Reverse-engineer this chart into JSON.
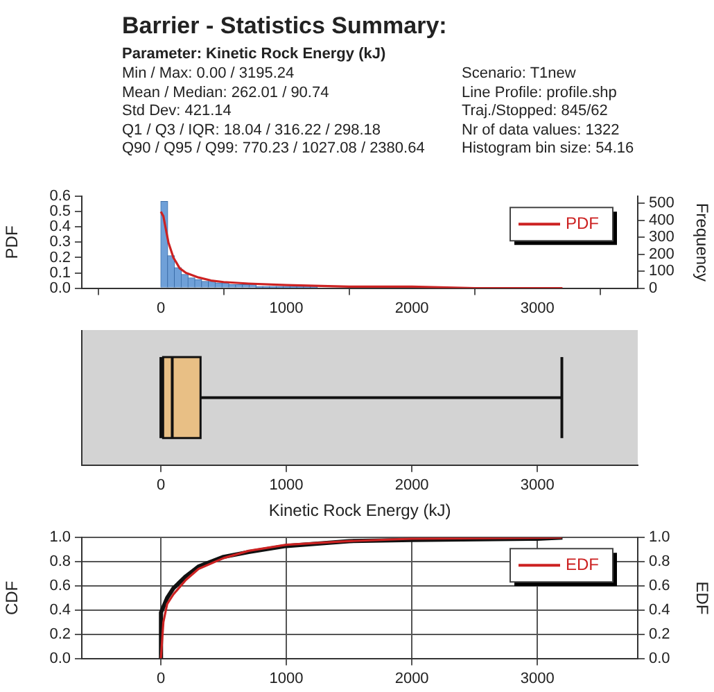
{
  "chart_data": [
    {
      "type": "histogram",
      "title": "Barrier - Statistics Summary:",
      "subtitle": "Parameter: Kinetic Rock Energy (kJ)",
      "annotations": [
        "Min / Max: 0.00 / 3195.24",
        "Scenario: T1new",
        "Mean / Median: 262.01 / 90.74",
        "Line Profile: profile.shp",
        "Std Dev: 421.14",
        "Traj./Stopped: 845/62",
        "Q1 / Q3 / IQR: 18.04 / 316.22 / 298.18",
        "Nr of data values: 1322",
        "Q90 / Q95 / Q99: 770.23 / 1027.08 / 2380.64",
        "Histogram bin size: 54.16"
      ],
      "ylabel": "PDF",
      "y2label": "Frequency",
      "bins": [
        0,
        54.16,
        108.32,
        162.48,
        216.64,
        270.8,
        324.96,
        379.12,
        433.28,
        487.44,
        541.6,
        595.76,
        649.92,
        704.08,
        758.24,
        812.4,
        866.56,
        920.72,
        974.88,
        1029.04,
        1083.2,
        1137.36,
        1191.52,
        1245.68,
        1299.84,
        1354,
        1408.16,
        1462.32,
        1516.48,
        1570.64,
        1624.8
      ],
      "series": [
        {
          "type": "histogram",
          "axis": "y2",
          "color": "#6fa0d8",
          "values": [
            510,
            190,
            120,
            80,
            60,
            50,
            40,
            40,
            30,
            30,
            20,
            20,
            20,
            20,
            10,
            10,
            10,
            10,
            10,
            10,
            10,
            10,
            10,
            0,
            0,
            0,
            0,
            0,
            0,
            0
          ]
        },
        {
          "type": "line",
          "name": "PDF",
          "color": "#cc2222",
          "x": [
            0,
            20,
            60,
            100,
            150,
            200,
            300,
            400,
            500,
            700,
            1000,
            1500,
            2000,
            2500,
            3000,
            3200
          ],
          "values": [
            0.5,
            0.47,
            0.3,
            0.2,
            0.13,
            0.1,
            0.07,
            0.05,
            0.04,
            0.03,
            0.02,
            0.01,
            0.01,
            0,
            0,
            0
          ]
        }
      ],
      "xlim": [
        -630,
        3800
      ],
      "xticks": [
        0,
        1000,
        2000,
        3000
      ],
      "ylim": [
        0,
        0.6
      ],
      "yticks": [
        {
          "value": 0,
          "label": "0.0"
        },
        0.1,
        0.2,
        0.3,
        0.4,
        0.5,
        0.6
      ],
      "y2lim": [
        0,
        540
      ],
      "y2ticks": [
        0,
        100,
        200,
        300,
        400,
        500
      ],
      "legend": "top right"
    },
    {
      "type": "box",
      "orientation": "horizontal",
      "categories": [
        null
      ],
      "xlabel": "Kinetic Rock Energy (kJ)",
      "series": [
        {
          "color": "#e8bf85",
          "boxes": [
            {
              "low": 0,
              "q1": 18.04,
              "median": 90.74,
              "q3": 316.22,
              "high": 3195.24
            }
          ]
        }
      ],
      "xlim": [
        -630,
        3800
      ],
      "xticks": [
        0,
        1000,
        2000,
        3000
      ]
    },
    {
      "type": "line",
      "ylabel": "CDF",
      "y2label": "EDF",
      "series": [
        {
          "color": "#111111",
          "x": [
            0,
            1,
            50,
            100,
            200,
            300,
            500,
            700,
            1000,
            1500,
            2000,
            3000,
            3200
          ],
          "values": [
            0,
            0.38,
            0.5,
            0.58,
            0.68,
            0.76,
            0.84,
            0.88,
            0.93,
            0.97,
            0.98,
            0.99,
            1
          ]
        },
        {
          "name": "EDF",
          "color": "#cc2222",
          "x": [
            0,
            20,
            50,
            100,
            200,
            300,
            500,
            700,
            1000,
            1500,
            2000,
            3195
          ],
          "values": [
            0,
            0.3,
            0.45,
            0.53,
            0.65,
            0.74,
            0.83,
            0.89,
            0.94,
            0.97,
            0.99,
            1
          ]
        }
      ],
      "xlim": [
        -630,
        3800
      ],
      "xticks": [
        0,
        1000,
        2000,
        3000
      ],
      "ylim": [
        0,
        1
      ],
      "yticks": [
        {
          "value": 0,
          "label": "0.0"
        },
        {
          "value": 0.2,
          "label": "0.2"
        },
        {
          "value": 0.4,
          "label": "0.4"
        },
        {
          "value": 0.6,
          "label": "0.6"
        },
        {
          "value": 0.8,
          "label": "0.8"
        },
        {
          "value": 1,
          "label": "1.0"
        }
      ],
      "y2lim": [
        0,
        1
      ],
      "y2ticks": [
        {
          "value": 0,
          "label": "0.0"
        },
        {
          "value": 0.2,
          "label": "0.2"
        },
        {
          "value": 0.4,
          "label": "0.4"
        },
        {
          "value": 0.6,
          "label": "0.6"
        },
        {
          "value": 0.8,
          "label": "0.8"
        },
        {
          "value": 1,
          "label": "1.0"
        }
      ],
      "grid": true,
      "legend": "top right"
    }
  ]
}
